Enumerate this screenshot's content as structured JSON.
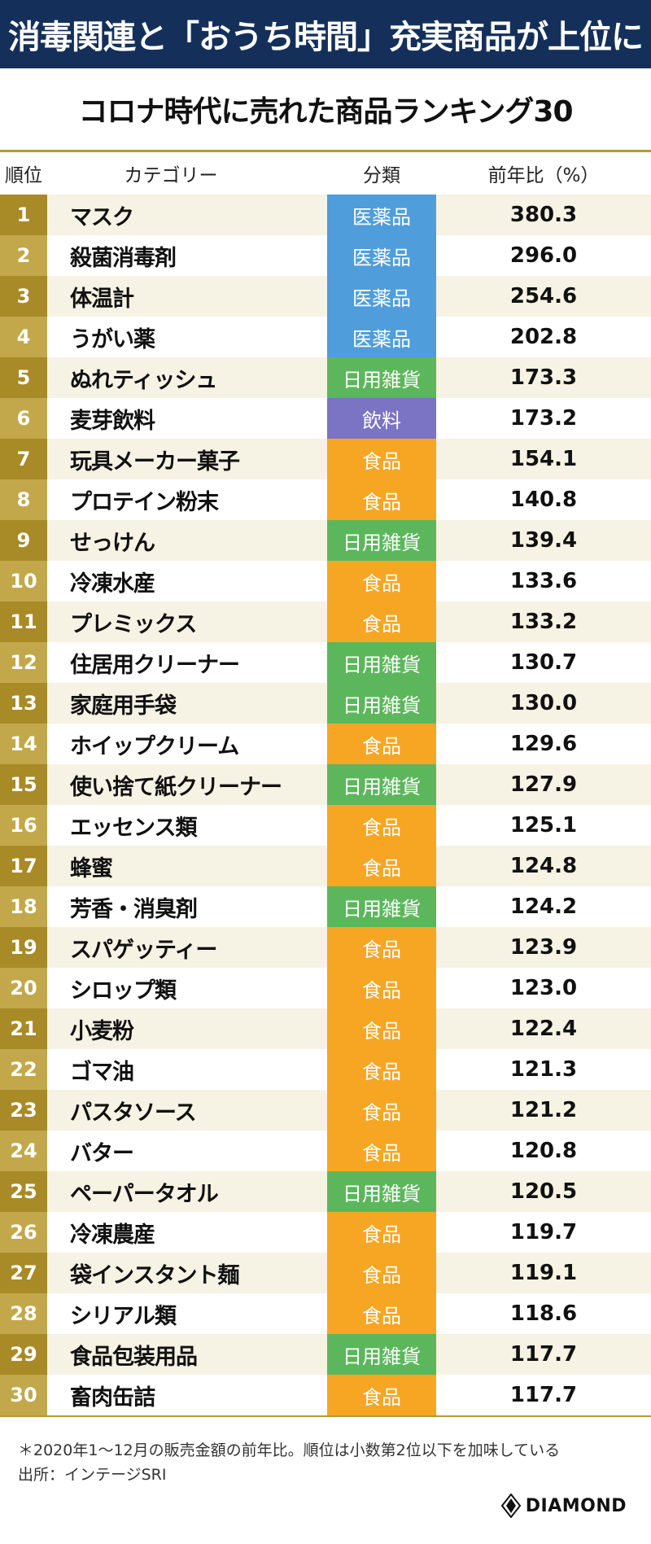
{
  "headline": "消毒関連と「おうち時間」充実商品が上位に",
  "subtitle": "コロナ時代に売れた商品ランキング30",
  "table": {
    "headers": {
      "rank": "順位",
      "category": "カテゴリー",
      "class": "分類",
      "yoy": "前年比（%）"
    },
    "rows": [
      {
        "rank": "1",
        "name": "マスク",
        "cls": "医薬品",
        "val": "380.3"
      },
      {
        "rank": "2",
        "name": "殺菌消毒剤",
        "cls": "医薬品",
        "val": "296.0"
      },
      {
        "rank": "3",
        "name": "体温計",
        "cls": "医薬品",
        "val": "254.6"
      },
      {
        "rank": "4",
        "name": "うがい薬",
        "cls": "医薬品",
        "val": "202.8"
      },
      {
        "rank": "5",
        "name": "ぬれティッシュ",
        "cls": "日用雑貨",
        "val": "173.3"
      },
      {
        "rank": "6",
        "name": "麦芽飲料",
        "cls": "飲料",
        "val": "173.2"
      },
      {
        "rank": "7",
        "name": "玩具メーカー菓子",
        "cls": "食品",
        "val": "154.1"
      },
      {
        "rank": "8",
        "name": "プロテイン粉末",
        "cls": "食品",
        "val": "140.8"
      },
      {
        "rank": "9",
        "name": "せっけん",
        "cls": "日用雑貨",
        "val": "139.4"
      },
      {
        "rank": "10",
        "name": "冷凍水産",
        "cls": "食品",
        "val": "133.6"
      },
      {
        "rank": "11",
        "name": "プレミックス",
        "cls": "食品",
        "val": "133.2"
      },
      {
        "rank": "12",
        "name": "住居用クリーナー",
        "cls": "日用雑貨",
        "val": "130.7"
      },
      {
        "rank": "13",
        "name": "家庭用手袋",
        "cls": "日用雑貨",
        "val": "130.0"
      },
      {
        "rank": "14",
        "name": "ホイップクリーム",
        "cls": "食品",
        "val": "129.6"
      },
      {
        "rank": "15",
        "name": "使い捨て紙クリーナー",
        "cls": "日用雑貨",
        "val": "127.9"
      },
      {
        "rank": "16",
        "name": "エッセンス類",
        "cls": "食品",
        "val": "125.1"
      },
      {
        "rank": "17",
        "name": "蜂蜜",
        "cls": "食品",
        "val": "124.8"
      },
      {
        "rank": "18",
        "name": "芳香・消臭剤",
        "cls": "日用雑貨",
        "val": "124.2"
      },
      {
        "rank": "19",
        "name": "スパゲッティー",
        "cls": "食品",
        "val": "123.9"
      },
      {
        "rank": "20",
        "name": "シロップ類",
        "cls": "食品",
        "val": "123.0"
      },
      {
        "rank": "21",
        "name": "小麦粉",
        "cls": "食品",
        "val": "122.4"
      },
      {
        "rank": "22",
        "name": "ゴマ油",
        "cls": "食品",
        "val": "121.3"
      },
      {
        "rank": "23",
        "name": "パスタソース",
        "cls": "食品",
        "val": "121.2"
      },
      {
        "rank": "24",
        "name": "バター",
        "cls": "食品",
        "val": "120.8"
      },
      {
        "rank": "25",
        "name": "ペーパータオル",
        "cls": "日用雑貨",
        "val": "120.5"
      },
      {
        "rank": "26",
        "name": "冷凍農産",
        "cls": "食品",
        "val": "119.7"
      },
      {
        "rank": "27",
        "name": "袋インスタント麺",
        "cls": "食品",
        "val": "119.1"
      },
      {
        "rank": "28",
        "name": "シリアル類",
        "cls": "食品",
        "val": "118.6"
      },
      {
        "rank": "29",
        "name": "食品包装用品",
        "cls": "日用雑貨",
        "val": "117.7"
      },
      {
        "rank": "30",
        "name": "畜肉缶詰",
        "cls": "食品",
        "val": "117.7"
      }
    ]
  },
  "class_colors": {
    "医薬品": "#4f9ddb",
    "日用雑貨": "#5cb75c",
    "飲料": "#7b73c4",
    "食品": "#f6a623"
  },
  "footnote": {
    "note": "＊2020年1〜12月の販売金額の前年比。順位は小数第2位以下を加味している",
    "source": "出所：インテージSRI"
  },
  "logo": {
    "text": "DIAMOND"
  }
}
